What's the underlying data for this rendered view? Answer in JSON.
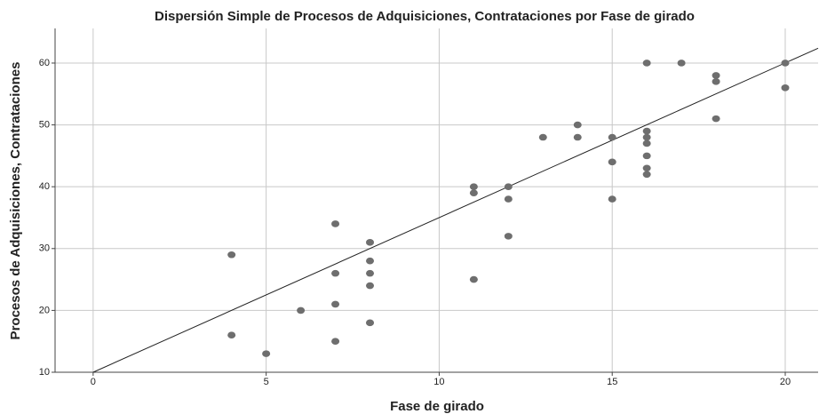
{
  "chart_data": {
    "type": "scatter",
    "title": "Dispersión Simple de Procesos de Adquisiciones, Contrataciones por Fase de girado",
    "x_label": "Fase de girado",
    "y_label": "Procesos de Adquisiciones, Contrataciones",
    "x": [
      4,
      4,
      5,
      6,
      7,
      7,
      7,
      7,
      8,
      8,
      8,
      8,
      8,
      11,
      11,
      11,
      12,
      12,
      12,
      13,
      14,
      14,
      15,
      15,
      15,
      16,
      16,
      16,
      16,
      16,
      16,
      16,
      17,
      18,
      18,
      18,
      20,
      20
    ],
    "values": [
      29,
      16,
      13,
      20,
      34,
      26,
      21,
      15,
      31,
      28,
      26,
      24,
      18,
      40,
      39,
      25,
      40,
      38,
      32,
      48,
      50,
      48,
      48,
      44,
      38,
      60,
      49,
      48,
      47,
      45,
      43,
      42,
      60,
      58,
      57,
      51,
      60,
      56
    ],
    "color": "#6e6e6e",
    "fit_line": {
      "x": [
        0,
        20.95
      ],
      "y": [
        10,
        62.4
      ]
    },
    "xlim": [
      -1.1,
      20.95
    ],
    "ylim": [
      10,
      65.6
    ],
    "xticks": [
      0,
      5,
      10,
      15,
      20
    ],
    "yticks": [
      10,
      20,
      30,
      40,
      50,
      60
    ],
    "grid": true
  }
}
